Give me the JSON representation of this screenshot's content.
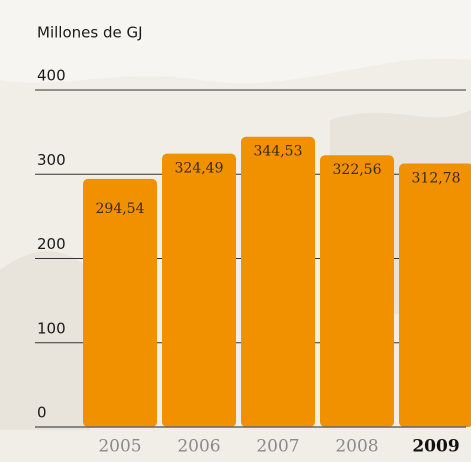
{
  "chart_data": {
    "type": "bar",
    "y_label": "Millones de GJ",
    "categories": [
      "2005",
      "2006",
      "2007",
      "2008",
      "2009"
    ],
    "values": [
      294.54,
      324.49,
      344.53,
      322.56,
      312.78
    ],
    "value_labels": [
      "294,54",
      "324,49",
      "344,53",
      "322,56",
      "312,78"
    ],
    "color": "#f29100",
    "highlight_category": "2009",
    "ylim": [
      0,
      400
    ],
    "yticks": [
      0,
      100,
      200,
      300,
      400
    ],
    "grid": true
  }
}
